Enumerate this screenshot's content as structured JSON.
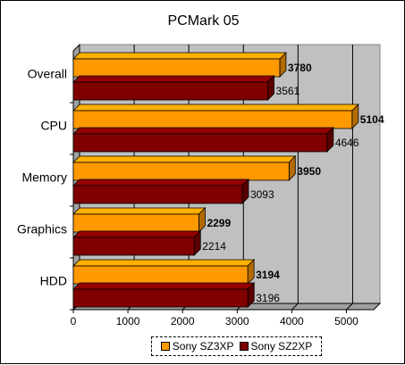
{
  "chart_data": {
    "type": "bar",
    "orientation": "horizontal",
    "title": "PCMark 05",
    "categories": [
      "Overall",
      "CPU",
      "Memory",
      "Graphics",
      "HDD"
    ],
    "series": [
      {
        "name": "Sony SZ3XP",
        "values": [
          3780,
          5104,
          3950,
          2299,
          3194
        ],
        "color": "#ff9900",
        "label_bold": true
      },
      {
        "name": "Sony SZ2XP",
        "values": [
          3561,
          4646,
          3093,
          2214,
          3196
        ],
        "color": "#800000",
        "label_bold": false
      }
    ],
    "xlim": [
      0,
      5500
    ],
    "x_ticks": [
      "0",
      "1000",
      "2000",
      "3000",
      "4000",
      "5000"
    ],
    "x_tick_values": [
      0,
      1000,
      2000,
      3000,
      4000,
      5000
    ],
    "grid": "vertical",
    "legend_position": "bottom",
    "plot_background": "#c0c0c0"
  }
}
